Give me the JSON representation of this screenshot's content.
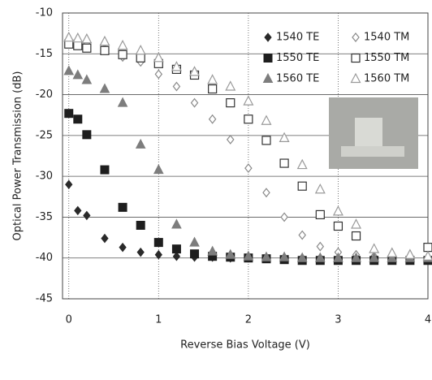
{
  "chart_data": {
    "type": "scatter",
    "xlabel": "Reverse Bias Voltage (V)",
    "ylabel": "Optical Power Transmission (dB)",
    "x": [
      0,
      0.1,
      0.2,
      0.4,
      0.6,
      0.8,
      1.0,
      1.2,
      1.4,
      1.6,
      1.8,
      2.0,
      2.2,
      2.4,
      2.6,
      2.8,
      3.0,
      3.2,
      3.4,
      3.6,
      3.8,
      4.0
    ],
    "xlim": [
      -0.07,
      4
    ],
    "ylim": [
      -45,
      -10
    ],
    "xticks": [
      0,
      1,
      2,
      3,
      4
    ],
    "yticks": [
      -45,
      -40,
      -35,
      -30,
      -25,
      -20,
      -15,
      -10
    ],
    "grid": true,
    "legend": "upper right",
    "series": [
      {
        "name": "1540 TE",
        "color": "#2a2a2a",
        "marker": "diamond",
        "filled": true,
        "values": [
          -31,
          -34.2,
          -34.8,
          -37.6,
          -38.7,
          -39.3,
          -39.6,
          -39.8,
          -39.9,
          -39.9,
          -40,
          -40,
          -40,
          -40,
          -40,
          -40,
          -40,
          -40,
          -40,
          -40,
          -40,
          -40
        ]
      },
      {
        "name": "1540 TM",
        "color": "#8a8a8a",
        "marker": "diamond",
        "filled": false,
        "values": [
          -13.5,
          -13.6,
          -13.8,
          -14.4,
          -15.4,
          -16,
          -17.5,
          -19,
          -21,
          -23,
          -25.5,
          -29,
          -32,
          -35,
          -37.2,
          -38.6,
          -39.3,
          -39.6,
          -39.8,
          -39.9,
          -40,
          -40
        ]
      },
      {
        "name": "1550 TE",
        "color": "#1e1e1e",
        "marker": "square",
        "filled": true,
        "values": [
          -22.3,
          -23,
          -24.9,
          -29.2,
          -33.8,
          -36,
          -38.1,
          -38.9,
          -39.5,
          -39.8,
          -39.9,
          -40,
          -40.1,
          -40.2,
          -40.3,
          -40.3,
          -40.3,
          -40.3,
          -40.3,
          -40.3,
          -40.3,
          -40.3
        ]
      },
      {
        "name": "1550 TM",
        "color": "#333333",
        "marker": "square",
        "filled": false,
        "values": [
          -13.8,
          -14,
          -14.3,
          -14.6,
          -15.1,
          -15.5,
          -16.2,
          -16.9,
          -17.6,
          -19.3,
          -21,
          -23,
          -25.6,
          -28.4,
          -31.2,
          -34.7,
          -36.1,
          -37.3,
          null,
          null,
          null,
          -38.7
        ]
      },
      {
        "name": "1560 TE",
        "color": "#7d7d7d",
        "marker": "triangle",
        "filled": true,
        "values": [
          -17.1,
          -17.6,
          -18.2,
          -19.3,
          -21,
          -26.1,
          -29.2,
          -35.9,
          -38.1,
          -39.2,
          -39.6,
          -39.8,
          -39.9,
          -39.9,
          -40,
          -40,
          -40,
          -40,
          -40,
          -40,
          -40,
          -40
        ]
      },
      {
        "name": "1560 TM",
        "color": "#9a9a9a",
        "marker": "triangle",
        "filled": false,
        "values": [
          -13,
          -13.1,
          -13.2,
          -13.5,
          -14,
          -14.6,
          -15.5,
          -16.6,
          -17.2,
          -18.2,
          -19,
          -20.8,
          -23.2,
          -25.3,
          -28.6,
          -31.6,
          -34.3,
          -35.9,
          -38.9,
          -39.4,
          -39.6,
          -39.8
        ]
      }
    ]
  }
}
